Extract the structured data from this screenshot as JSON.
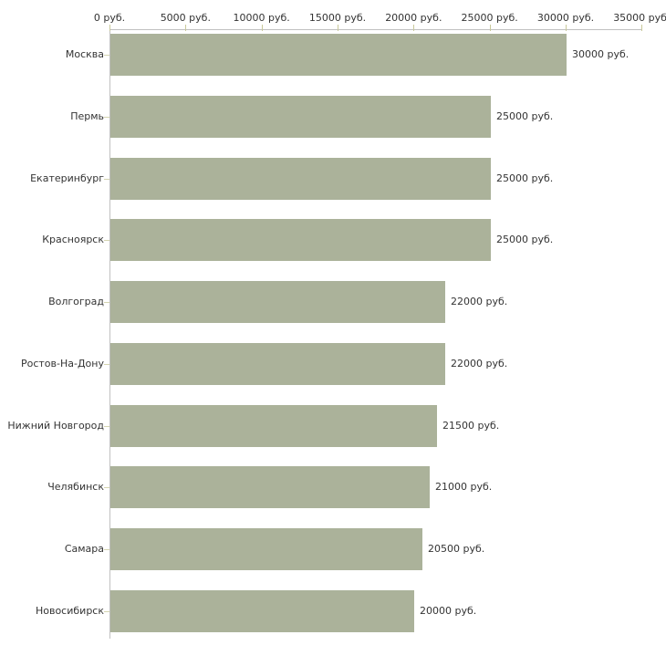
{
  "chart_data": {
    "type": "bar",
    "orientation": "horizontal",
    "title": "",
    "xlabel": "",
    "ylabel": "",
    "unit": "руб.",
    "grid": false,
    "legend": null,
    "xlim": [
      0,
      35000
    ],
    "categories": [
      "Москва",
      "Пермь",
      "Екатеринбург",
      "Красноярск",
      "Волгоград",
      "Ростов-На-Дону",
      "Нижний Новгород",
      "Челябинск",
      "Самара",
      "Новосибирск"
    ],
    "values": [
      30000,
      25000,
      25000,
      25000,
      22000,
      22000,
      21500,
      21000,
      20500,
      20000
    ],
    "value_labels": [
      "30000 руб.",
      "25000 руб.",
      "25000 руб.",
      "25000 руб.",
      "22000 руб.",
      "22000 руб.",
      "21500 руб.",
      "21000 руб.",
      "20500 руб.",
      "20000 руб."
    ],
    "x_ticks": [
      {
        "value": 0,
        "label": "0 руб."
      },
      {
        "value": 5000,
        "label": "5000 руб."
      },
      {
        "value": 10000,
        "label": "10000 руб."
      },
      {
        "value": 15000,
        "label": "15000 руб."
      },
      {
        "value": 20000,
        "label": "20000 руб."
      },
      {
        "value": 25000,
        "label": "25000 руб."
      },
      {
        "value": 30000,
        "label": "30000 руб."
      },
      {
        "value": 35000,
        "label": "35000 руб."
      }
    ],
    "colors": {
      "bar": "#abb29a",
      "axis_line": "#c0c0c0",
      "axis_tick": "#c9c99a",
      "category_tick": "#d4d4b0",
      "text": "#333333",
      "background": "#ffffff"
    }
  }
}
